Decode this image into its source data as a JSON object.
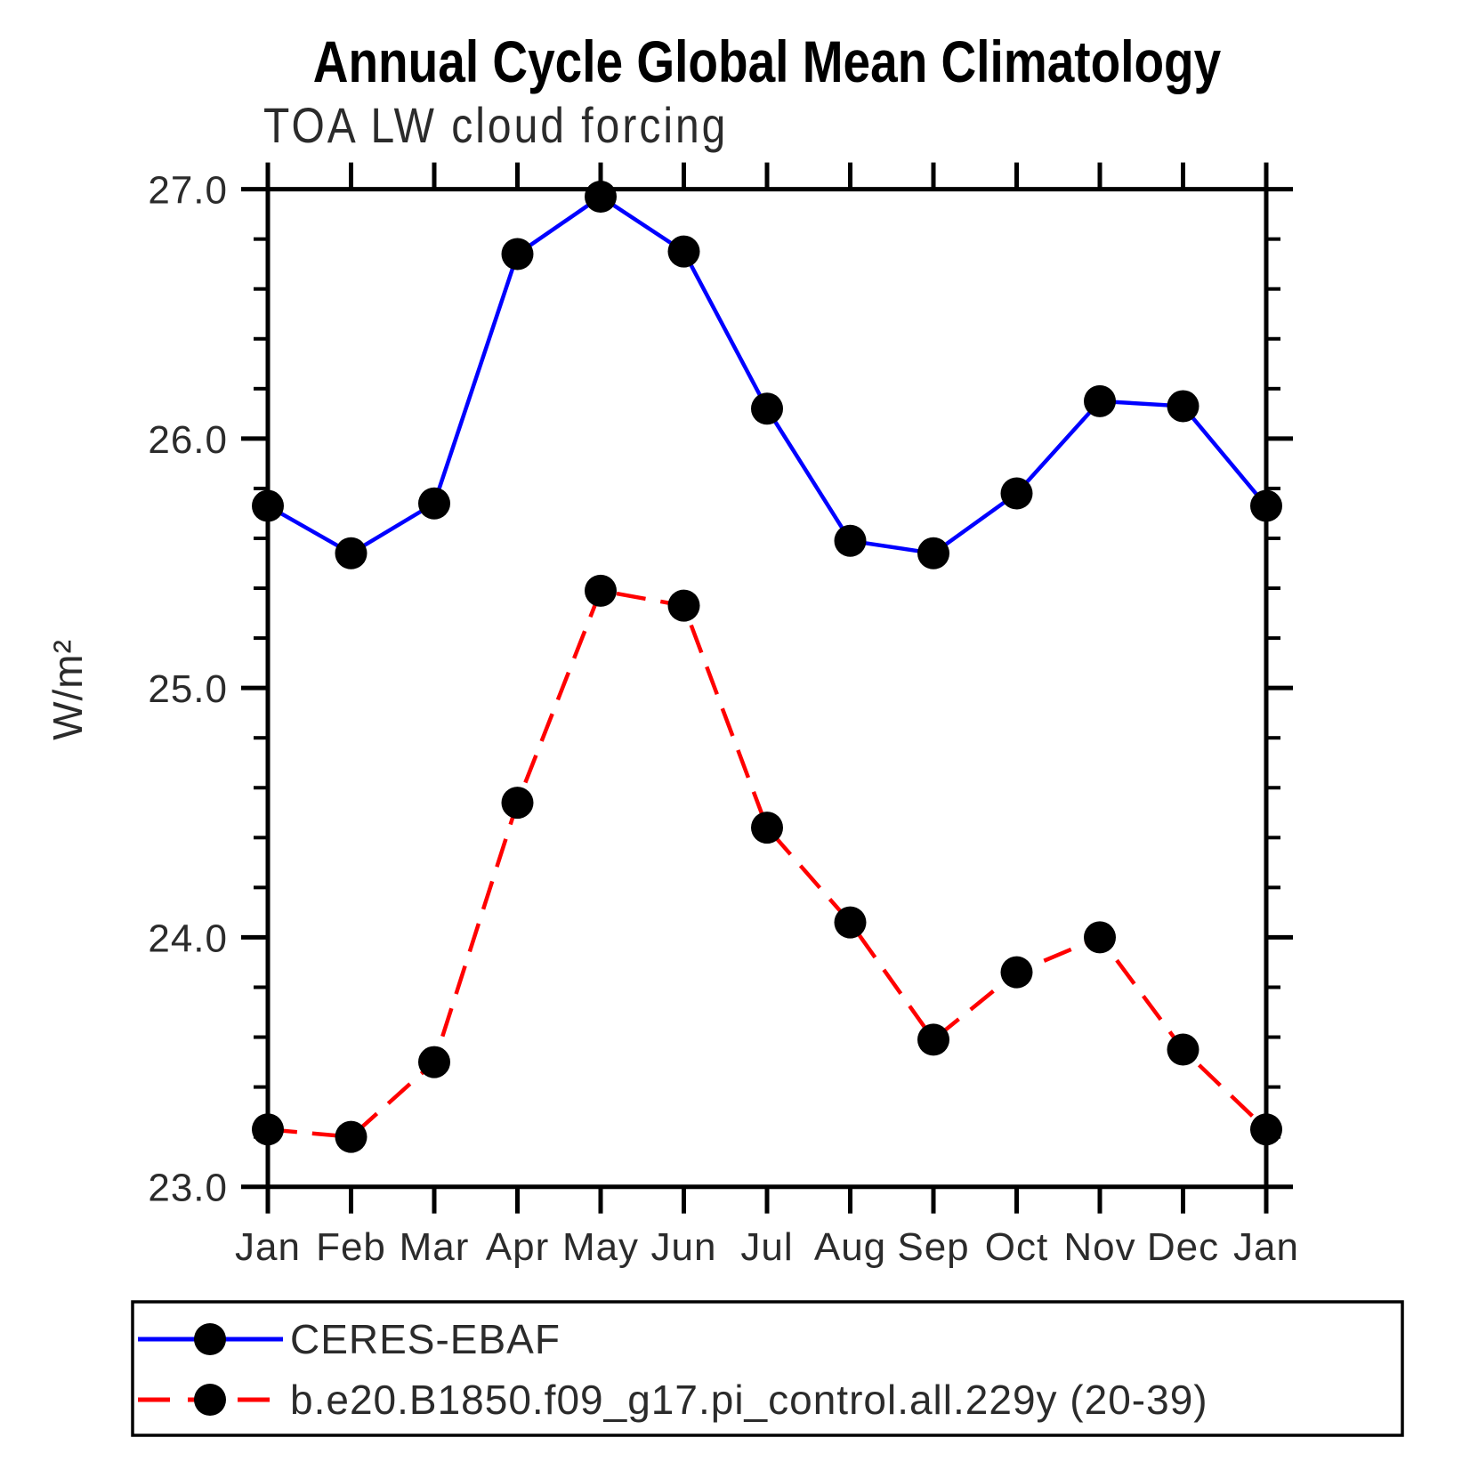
{
  "chart_data": {
    "type": "line",
    "title": "Annual Cycle Global Mean Climatology",
    "subtitle": "TOA LW cloud forcing",
    "ylabel": "W/m²",
    "xlabel": "",
    "categories": [
      "Jan",
      "Feb",
      "Mar",
      "Apr",
      "May",
      "Jun",
      "Jul",
      "Aug",
      "Sep",
      "Oct",
      "Nov",
      "Dec",
      "Jan"
    ],
    "ylim": [
      23.0,
      27.0
    ],
    "ytick_major_step": 1.0,
    "ytick_minor_step": 0.2,
    "ytick_labels": [
      "23.0",
      "24.0",
      "25.0",
      "26.0",
      "27.0"
    ],
    "grid": false,
    "legend_position": "bottom",
    "series": [
      {
        "name": "CERES-EBAF",
        "color": "#0000ff",
        "line_style": "solid",
        "marker": "filled-black-circle",
        "values": [
          25.73,
          25.54,
          25.74,
          26.74,
          26.97,
          26.75,
          26.12,
          25.59,
          25.54,
          25.78,
          26.15,
          26.13,
          25.73
        ]
      },
      {
        "name": "b.e20.B1850.f09_g17.pi_control.all.229y (20-39)",
        "color": "#ff0000",
        "line_style": "dashed",
        "marker": "filled-black-circle",
        "values": [
          23.23,
          23.2,
          23.5,
          24.54,
          25.39,
          25.33,
          24.44,
          24.06,
          23.59,
          23.86,
          24.0,
          23.55,
          23.23
        ]
      }
    ]
  },
  "colors": {
    "axis": "#000000",
    "marker": "#000000",
    "background": "#ffffff",
    "series_blue": "#0000ff",
    "series_red": "#ff0000"
  }
}
